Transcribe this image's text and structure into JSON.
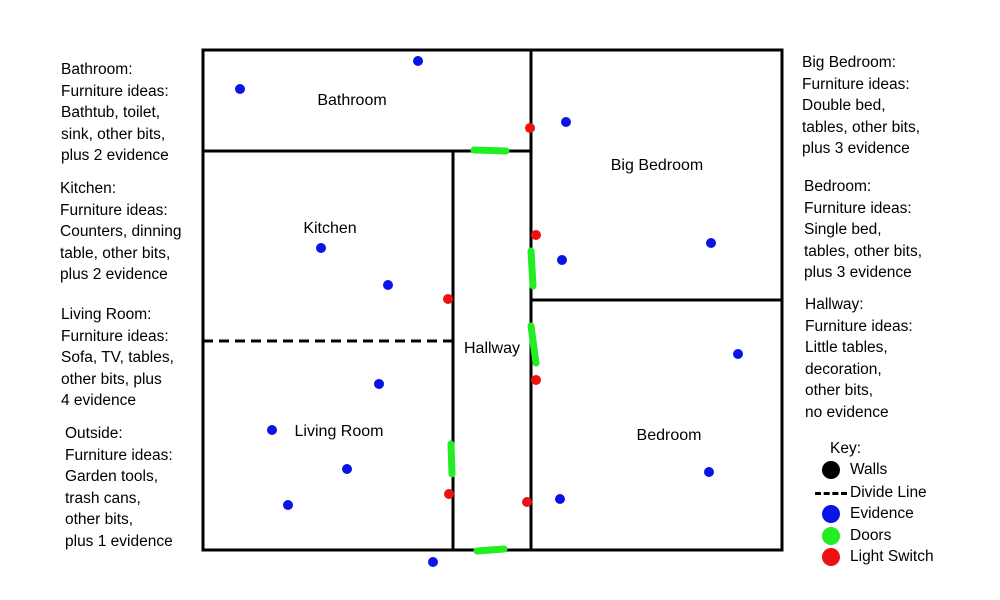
{
  "colors": {
    "walls": "#000000",
    "evidence": "#0a14e6",
    "doors": "#22ee22",
    "light_switch": "#ee1111"
  },
  "rooms": {
    "bathroom": "Bathroom",
    "big_bedroom": "Big Bedroom",
    "kitchen": "Kitchen",
    "hallway": "Hallway",
    "living_room": "Living Room",
    "bedroom": "Bedroom"
  },
  "notes": {
    "bathroom": "Bathroom:\nFurniture ideas:\nBathtub, toilet,\nsink, other bits,\nplus 2 evidence",
    "kitchen": "Kitchen:\nFurniture ideas:\nCounters, dinning\ntable, other bits,\nplus 2 evidence",
    "living_room": "Living Room:\nFurniture ideas:\nSofa, TV, tables,\nother bits, plus\n4 evidence",
    "outside": "Outside:\nFurniture ideas:\nGarden tools,\ntrash cans,\nother bits,\nplus 1 evidence",
    "big_bedroom": "Big Bedroom:\nFurniture ideas:\nDouble bed,\ntables, other bits,\nplus 3 evidence",
    "bedroom": "Bedroom:\nFurniture ideas:\nSingle bed,\ntables, other bits,\nplus 3 evidence",
    "hallway": "Hallway:\nFurniture ideas:\nLittle tables,\ndecoration,\nother bits,\nno evidence"
  },
  "key": {
    "title": "Key:",
    "walls": "Walls",
    "divide_line": "Divide Line",
    "evidence": "Evidence",
    "doors": "Doors",
    "light_switch": "Light Switch"
  }
}
